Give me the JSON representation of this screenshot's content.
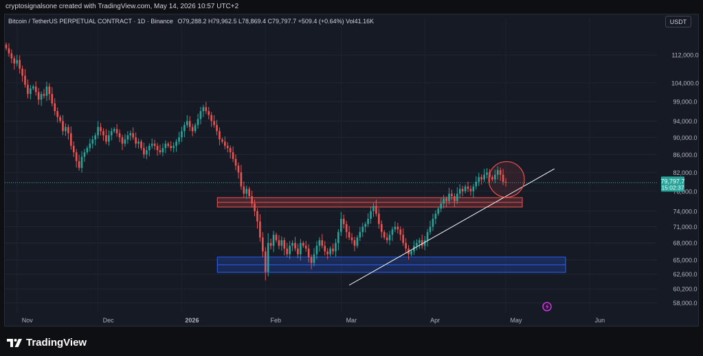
{
  "header": {
    "creator_text": "cryptosignalsone created with TradingView.com, May 14, 2026 10:57 UTC+2"
  },
  "legend": {
    "symbol": "Bitcoin / TetherUS PERPETUAL CONTRACT · 1D · Binance",
    "ohlc": "O79,288.2  H79,962.5  L78,869.4  C79,797.7  +509.4 (+0.64%)  Vol41.16K"
  },
  "currency_button": "USDT",
  "price_badge": {
    "price": "79,797.7",
    "countdown": "15:02:37",
    "color": "#26a69a"
  },
  "footer": {
    "brand": "TradingView"
  },
  "colors": {
    "up": "#26a69a",
    "down": "#ef5350",
    "resistance_zone": "#ef5350",
    "support_zone": "#2962ff",
    "trendline": "#ffffff",
    "background": "#161a25"
  },
  "chart_data": {
    "type": "candlestick",
    "title": "Bitcoin / TetherUS PERPETUAL CONTRACT · 1D · Binance",
    "x_axis": {
      "tick_labels": [
        "Nov",
        "Dec",
        "2026",
        "Feb",
        "Mar",
        "Apr",
        "May",
        "Jun"
      ]
    },
    "y_axis": {
      "scale": "log",
      "tick_labels": [
        "112,000.0",
        "104,000.0",
        "99,000.0",
        "94,000.0",
        "90,000.0",
        "86,000.0",
        "82,000.0",
        "78,000.0",
        "74,000.0",
        "71,000.0",
        "68,000.0",
        "65,000.0",
        "62,600.0",
        "60,200.0",
        "58,000.0"
      ],
      "ticks": [
        112000,
        104000,
        99000,
        94000,
        90000,
        86000,
        82000,
        78000,
        74000,
        71000,
        68000,
        65000,
        62600,
        60200,
        58000
      ],
      "range": [
        56500,
        120500
      ]
    },
    "last_price": 79797.7,
    "closes_approx": [
      114000,
      112500,
      111000,
      109500,
      110500,
      108000,
      106000,
      103500,
      101000,
      102500,
      103000,
      101500,
      99500,
      101000,
      100500,
      103000,
      101000,
      98500,
      96500,
      95000,
      94000,
      91500,
      92500,
      91000,
      88000,
      86500,
      84500,
      83000,
      85500,
      86500,
      87500,
      88500,
      89500,
      90500,
      92500,
      91500,
      90500,
      89000,
      90500,
      91500,
      92000,
      91000,
      90000,
      88500,
      89500,
      90500,
      91000,
      90000,
      88500,
      89000,
      87500,
      86000,
      87000,
      88000,
      88500,
      88000,
      87000,
      86500,
      87500,
      88500,
      88000,
      87500,
      88000,
      89000,
      90000,
      91500,
      93000,
      94000,
      92500,
      91500,
      93000,
      94500,
      96500,
      97500,
      96500,
      95500,
      94000,
      93000,
      91500,
      89500,
      89000,
      88000,
      87500,
      86500,
      85000,
      83500,
      82000,
      79000,
      77500,
      78500,
      77000,
      75500,
      74000,
      72000,
      69000,
      66500,
      63000,
      68000,
      67500,
      69500,
      68500,
      67500,
      68500,
      67000,
      66000,
      67500,
      68000,
      67000,
      66000,
      68000,
      67500,
      67000,
      65500,
      64500,
      66000,
      67500,
      68500,
      67500,
      66500,
      66000,
      67000,
      66500,
      68000,
      70000,
      72500,
      71500,
      70000,
      69000,
      68500,
      67500,
      69000,
      70000,
      71000,
      71500,
      72500,
      74000,
      75000,
      73500,
      71500,
      70000,
      69000,
      68500,
      69500,
      70500,
      71000,
      70500,
      69500,
      68000,
      67000,
      66000,
      66500,
      67500,
      68000,
      68500,
      67500,
      68500,
      70000,
      71000,
      72500,
      73500,
      74500,
      75500,
      76500,
      76000,
      77500,
      77000,
      76000,
      77500,
      78500,
      78000,
      79000,
      78500,
      78000,
      79000,
      80000,
      81000,
      80500,
      81500,
      82000,
      81000,
      80500,
      81500,
      82500,
      81500,
      80000,
      79800
    ],
    "annotations": [
      {
        "type": "horizontal_zone",
        "label": "resistance",
        "price_range": [
          74800,
          76700
        ],
        "color": "#ef5350"
      },
      {
        "type": "horizontal_zone",
        "label": "support",
        "price_range": [
          62900,
          65500
        ],
        "color": "#2962ff"
      },
      {
        "type": "trendline",
        "from": {
          "date": "Mar 4",
          "price": 60800
        },
        "to": {
          "date": "May 19",
          "price": 82800
        },
        "color": "#ffffff"
      },
      {
        "type": "circle",
        "around_price": 80500,
        "color": "#ef5350"
      }
    ],
    "grid": true
  }
}
